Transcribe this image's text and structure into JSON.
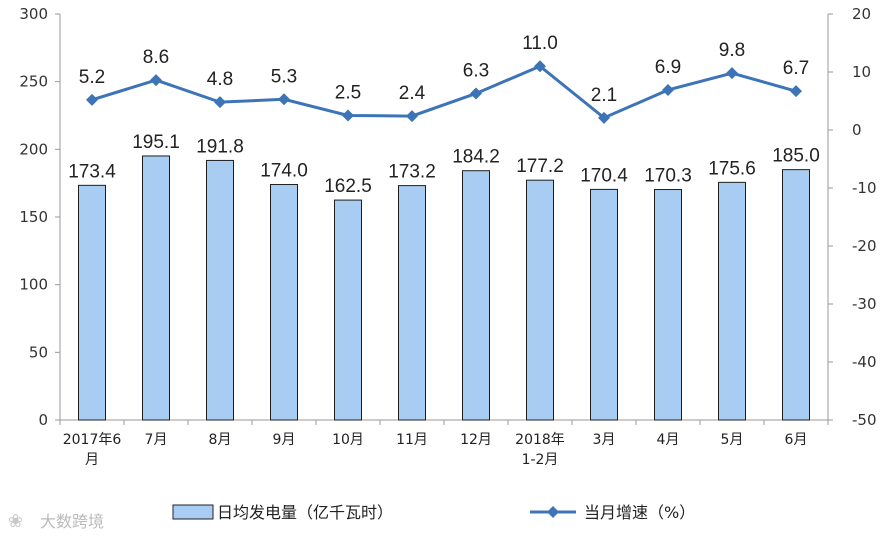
{
  "chart_data": {
    "type": "bar",
    "categories": [
      [
        "2017年6",
        "月"
      ],
      [
        "7月"
      ],
      [
        "8月"
      ],
      [
        "9月"
      ],
      [
        "10月"
      ],
      [
        "11月"
      ],
      [
        "12月"
      ],
      [
        "2018年",
        "1-2月"
      ],
      [
        "3月"
      ],
      [
        "4月"
      ],
      [
        "5月"
      ],
      [
        "6月"
      ]
    ],
    "series": [
      {
        "name": "日均发电量（亿千瓦时）",
        "type": "bar",
        "axis": "left",
        "color": "#a9cdf2",
        "values": [
          173.4,
          195.1,
          191.8,
          174.0,
          162.5,
          173.2,
          184.2,
          177.2,
          170.4,
          170.3,
          175.6,
          185.0
        ],
        "labels": [
          "173.4",
          "195.1",
          "191.8",
          "174.0",
          "162.5",
          "173.2",
          "184.2",
          "177.2",
          "170.4",
          "170.3",
          "175.6",
          "185.0"
        ]
      },
      {
        "name": "当月增速（%）",
        "type": "line",
        "axis": "right",
        "color": "#3d74b8",
        "values": [
          5.2,
          8.6,
          4.8,
          5.3,
          2.5,
          2.4,
          6.3,
          11.0,
          2.1,
          6.9,
          9.8,
          6.7
        ],
        "labels": [
          "5.2",
          "8.6",
          "4.8",
          "5.3",
          "2.5",
          "2.4",
          "6.3",
          "11.0",
          "2.1",
          "6.9",
          "9.8",
          "6.7"
        ]
      }
    ],
    "y_left": {
      "min": 0,
      "max": 300,
      "ticks": [
        "0",
        "50",
        "100",
        "150",
        "200",
        "250",
        "300"
      ]
    },
    "y_right": {
      "min": -50,
      "max": 20,
      "ticks": [
        "20",
        "10",
        "0",
        "-10",
        "-20",
        "-30",
        "-40",
        "-50"
      ]
    },
    "grid": false,
    "legend": "bottom"
  },
  "watermark": "大数跨境"
}
